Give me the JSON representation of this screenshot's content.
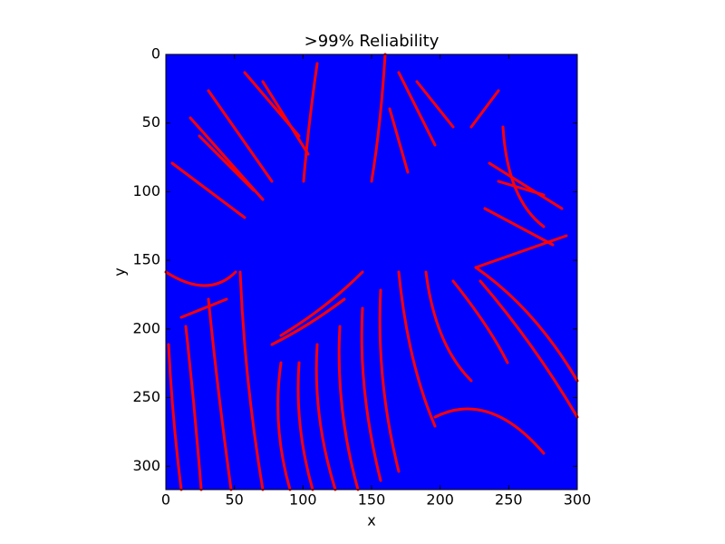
{
  "chart_data": {
    "type": "image",
    "title": ">99% Reliability",
    "x_label": "x",
    "y_label": "y",
    "xlim": [
      0,
      300
    ],
    "ylim": [
      317,
      0
    ],
    "xticks": [
      0,
      50,
      100,
      150,
      200,
      250,
      300
    ],
    "yticks": [
      0,
      50,
      100,
      150,
      200,
      250,
      300
    ],
    "background_color": "#0000ff",
    "mask_color": "#ff0000"
  }
}
